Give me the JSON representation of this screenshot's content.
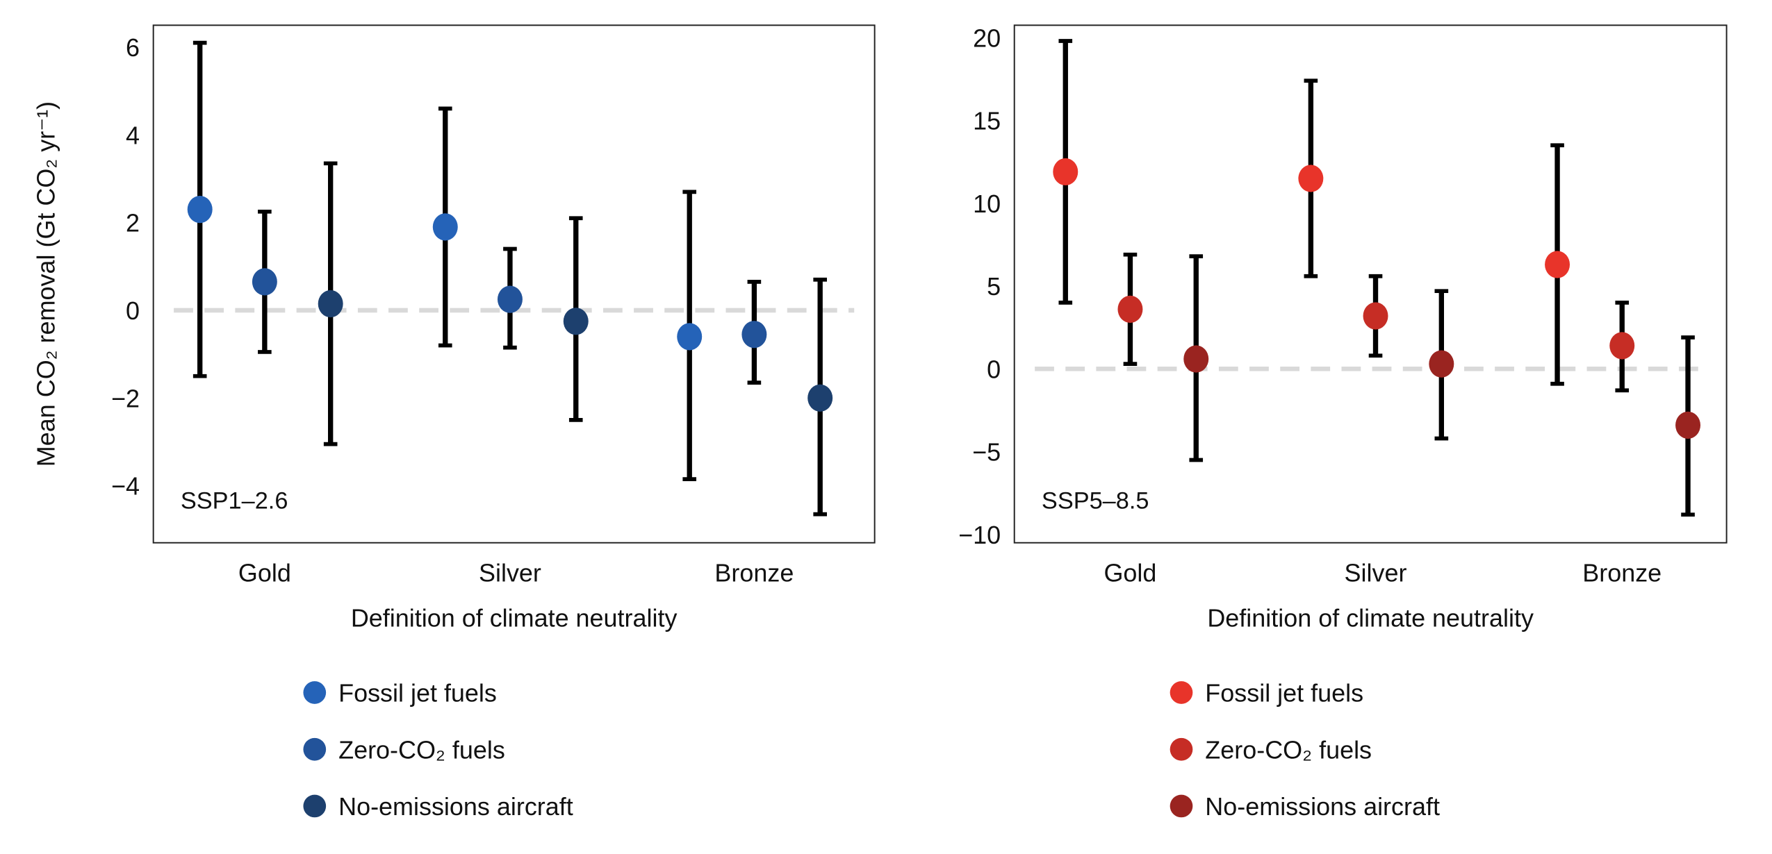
{
  "chart_data": [
    {
      "type": "scatter",
      "subtype": "point-with-errorbars",
      "annotation": "SSP1–2.6",
      "xlabel": "Definition of climate neutrality",
      "ylabel": "Mean CO₂ removal (Gt CO₂ yr⁻¹)",
      "categories": [
        "Gold",
        "Silver",
        "Bronze"
      ],
      "ylim": [
        -5.3,
        6.5
      ],
      "yticks": [
        -4,
        -2,
        0,
        2,
        4,
        6
      ],
      "reference_line": 0,
      "grid": false,
      "legend_placement": "bottom",
      "series": [
        {
          "name": "Fossil jet fuels",
          "color": "#2563b8",
          "values": [
            2.3,
            1.9,
            -0.6
          ],
          "lower": [
            -1.5,
            -0.8,
            -3.85
          ],
          "upper": [
            6.1,
            4.6,
            2.7
          ]
        },
        {
          "name": "Zero-CO₂ fuels",
          "color": "#22539a",
          "values": [
            0.65,
            0.25,
            -0.55
          ],
          "lower": [
            -0.95,
            -0.85,
            -1.65
          ],
          "upper": [
            2.25,
            1.4,
            0.65
          ]
        },
        {
          "name": "No-emissions aircraft",
          "color": "#1d406e",
          "values": [
            0.15,
            -0.25,
            -2.0
          ],
          "lower": [
            -3.05,
            -2.5,
            -4.65
          ],
          "upper": [
            3.35,
            2.1,
            0.7
          ]
        }
      ]
    },
    {
      "type": "scatter",
      "subtype": "point-with-errorbars",
      "annotation": "SSP5–8.5",
      "xlabel": "Definition of climate neutrality",
      "ylabel": "",
      "categories": [
        "Gold",
        "Silver",
        "Bronze"
      ],
      "ylim": [
        -10.5,
        20.75
      ],
      "yticks": [
        -10,
        -5,
        0,
        5,
        10,
        15,
        20
      ],
      "reference_line": 0,
      "grid": false,
      "legend_placement": "bottom",
      "series": [
        {
          "name": "Fossil jet fuels",
          "color": "#e8342a",
          "values": [
            11.9,
            11.5,
            6.3
          ],
          "lower": [
            4.0,
            5.6,
            -0.9
          ],
          "upper": [
            19.8,
            17.4,
            13.5
          ]
        },
        {
          "name": "Zero-CO₂ fuels",
          "color": "#c62d25",
          "values": [
            3.6,
            3.2,
            1.4
          ],
          "lower": [
            0.3,
            0.8,
            -1.3
          ],
          "upper": [
            6.9,
            5.6,
            4.0
          ]
        },
        {
          "name": "No-emissions aircraft",
          "color": "#9a2420",
          "values": [
            0.6,
            0.3,
            -3.4
          ],
          "lower": [
            -5.5,
            -4.2,
            -8.8
          ],
          "upper": [
            6.8,
            4.7,
            1.9
          ]
        }
      ]
    }
  ],
  "colors": {
    "errorbar": "#000000",
    "reference_line": "#d9d9d9"
  }
}
